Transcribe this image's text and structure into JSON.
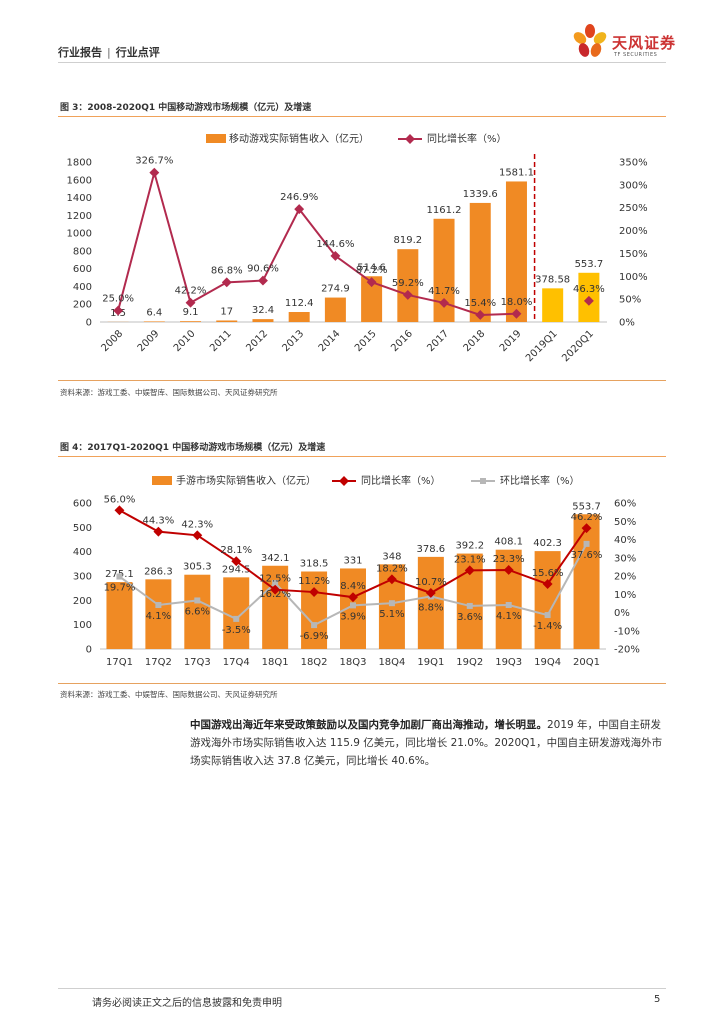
{
  "header": {
    "left": "行业报告",
    "right": "行业点评"
  },
  "brand": {
    "name_cn": "天风证券",
    "name_en": "TF SECURITIES"
  },
  "colors": {
    "orange": "#f08a24",
    "orange_highlight": "#ffc000",
    "red": "#b22a4e",
    "dark_red": "#c00000",
    "gray": "#b7b7b7",
    "rule": "#f0a25a"
  },
  "figure3": {
    "title": "图 3：2008-2020Q1 中国移动游戏市场规模（亿元）及增速",
    "source": "资料来源：游戏工委、中娱智库、国际数据公司、天风证券研究所"
  },
  "figure4": {
    "title": "图 4：2017Q1-2020Q1 中国移动游戏市场规模（亿元）及增速",
    "source": "资料来源：游戏工委、中娱智库、国际数据公司、天风证券研究所"
  },
  "chart_data": [
    {
      "type": "bar",
      "title": "图 3：2008-2020Q1 中国移动游戏市场规模（亿元）及增速",
      "categories": [
        "2008",
        "2009",
        "2010",
        "2011",
        "2012",
        "2013",
        "2014",
        "2015",
        "2016",
        "2017",
        "2018",
        "2019",
        "2019Q1",
        "2020Q1"
      ],
      "series": [
        {
          "name": "移动游戏实际销售收入（亿元）",
          "kind": "bar",
          "axis": "left",
          "values": [
            1.5,
            6.4,
            9.1,
            17,
            32.4,
            112.4,
            274.9,
            514.6,
            819.2,
            1161.2,
            1339.6,
            1581.1,
            378.58,
            553.7
          ],
          "labels": [
            "1.5",
            "6.4",
            "9.1",
            "17",
            "32.4",
            "112.4",
            "274.9",
            "514.6",
            "819.2",
            "1161.2",
            "1339.6",
            "1581.1",
            "378.58",
            "553.7"
          ]
        },
        {
          "name": "同比增长率（%）",
          "kind": "line",
          "axis": "right",
          "values": [
            25.0,
            326.7,
            42.2,
            86.8,
            90.6,
            246.9,
            144.6,
            87.2,
            59.2,
            41.7,
            15.4,
            18.0,
            null,
            46.3
          ],
          "labels": [
            "25.0%",
            "326.7%",
            "42.2%",
            "86.8%",
            "90.6%",
            "246.9%",
            "144.6%",
            "87.2%",
            "59.2%",
            "41.7%",
            "15.4%",
            "18.0%",
            "",
            "46.3%"
          ]
        }
      ],
      "ylim_left": [
        0,
        1800
      ],
      "yticks_left": [
        "0",
        "200",
        "400",
        "600",
        "800",
        "1000",
        "1200",
        "1400",
        "1600",
        "1800"
      ],
      "ylim_right": [
        0,
        350
      ],
      "yticks_right": [
        "0%",
        "50%",
        "100%",
        "150%",
        "200%",
        "250%",
        "300%",
        "350%"
      ],
      "legend": "top",
      "annotation": "dashed vertical separator between 2019 and 2019Q1"
    },
    {
      "type": "bar",
      "title": "图 4：2017Q1-2020Q1 中国移动游戏市场规模（亿元）及增速",
      "categories": [
        "17Q1",
        "17Q2",
        "17Q3",
        "17Q4",
        "18Q1",
        "18Q2",
        "18Q3",
        "18Q4",
        "19Q1",
        "19Q2",
        "19Q3",
        "19Q4",
        "20Q1"
      ],
      "series": [
        {
          "name": "手游市场实际销售收入（亿元）",
          "kind": "bar",
          "axis": "left",
          "values": [
            275.1,
            286.3,
            305.3,
            294.5,
            342.1,
            318.5,
            331,
            348,
            378.6,
            392.2,
            408.1,
            402.3,
            553.7
          ],
          "labels": [
            "275.1",
            "286.3",
            "305.3",
            "294.5",
            "342.1",
            "318.5",
            "331",
            "348",
            "378.6",
            "392.2",
            "408.1",
            "402.3",
            "553.7"
          ]
        },
        {
          "name": "同比增长率（%）",
          "kind": "line",
          "axis": "right",
          "values": [
            56.0,
            44.3,
            42.3,
            28.1,
            12.5,
            11.2,
            8.4,
            18.2,
            10.7,
            23.1,
            23.3,
            15.6,
            46.2
          ],
          "labels": [
            "56.0%",
            "44.3%",
            "42.3%",
            "28.1%",
            "12.5%",
            "11.2%",
            "8.4%",
            "18.2%",
            "10.7%",
            "23.1%",
            "23.3%",
            "15.6%",
            "46.2%"
          ]
        },
        {
          "name": "环比增长率（%）",
          "kind": "line",
          "axis": "right",
          "values": [
            19.7,
            4.1,
            6.6,
            -3.5,
            16.2,
            -6.9,
            3.9,
            5.1,
            8.8,
            3.6,
            4.1,
            -1.4,
            37.6
          ],
          "labels": [
            "19.7%",
            "4.1%",
            "6.6%",
            "-3.5%",
            "16.2%",
            "-6.9%",
            "3.9%",
            "5.1%",
            "8.8%",
            "3.6%",
            "4.1%",
            "-1.4%",
            "37.6%"
          ]
        }
      ],
      "ylim_left": [
        0,
        600
      ],
      "yticks_left": [
        "0",
        "100",
        "200",
        "300",
        "400",
        "500",
        "600"
      ],
      "ylim_right": [
        -20,
        60
      ],
      "yticks_right": [
        "-20%",
        "-10%",
        "0%",
        "10%",
        "20%",
        "30%",
        "40%",
        "50%",
        "60%"
      ],
      "legend": "top"
    }
  ],
  "body": {
    "bold": "中国游戏出海近年来受政策鼓励以及国内竞争加剧厂商出海推动，增长明显。",
    "rest": "2019 年，中国自主研发游戏海外市场实际销售收入达 115.9 亿美元，同比增长 21.0%。2020Q1，中国自主研发游戏海外市场实际销售收入达 37.8 亿美元，同比增长 40.6%。"
  },
  "footer": {
    "disclaimer": "请务必阅读正文之后的信息披露和免责申明",
    "page": "5"
  }
}
